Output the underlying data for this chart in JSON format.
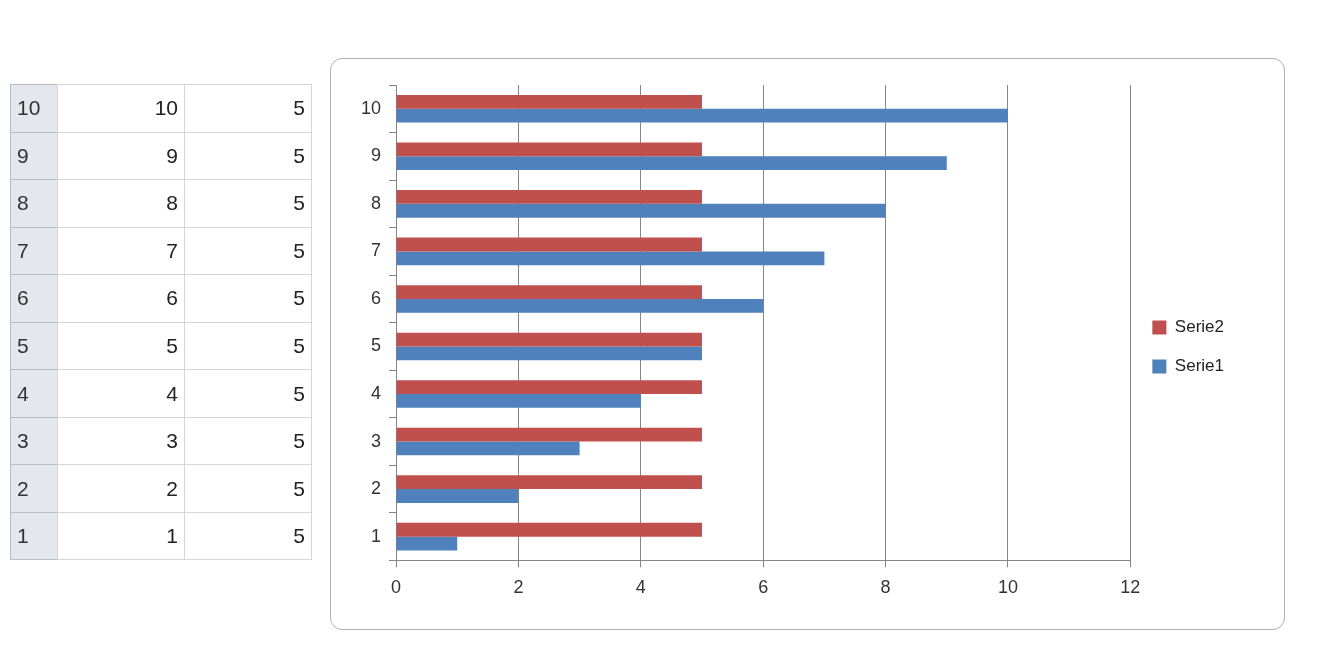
{
  "chart_data": {
    "type": "bar",
    "orientation": "horizontal",
    "categories": [
      "10",
      "9",
      "8",
      "7",
      "6",
      "5",
      "4",
      "3",
      "2",
      "1"
    ],
    "series": [
      {
        "name": "Serie2",
        "color": "#c0504d",
        "values": [
          5,
          5,
          5,
          5,
          5,
          5,
          5,
          5,
          5,
          5
        ]
      },
      {
        "name": "Serie1",
        "color": "#4f81bd",
        "values": [
          10,
          9,
          8,
          7,
          6,
          5,
          4,
          3,
          2,
          1
        ]
      }
    ],
    "xlim": [
      0,
      12
    ],
    "xticks": [
      0,
      2,
      4,
      6,
      8,
      10,
      12
    ],
    "grid": "x",
    "legend": "right",
    "data_labels": true
  }
}
